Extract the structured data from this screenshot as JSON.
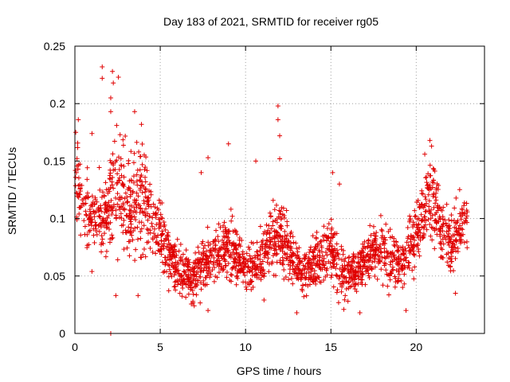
{
  "chart_data": {
    "type": "scatter",
    "title": "Day 183 of 2021, SRMTID for receiver rg05",
    "xlabel": "GPS time / hours",
    "ylabel": "SRMTID / TECUs",
    "xlim": [
      0,
      24
    ],
    "ylim": [
      0,
      0.25
    ],
    "x_ticks": [
      0,
      5,
      10,
      15,
      20
    ],
    "x_tick_labels": [
      "0",
      "5",
      "10",
      "15",
      "20"
    ],
    "y_ticks": [
      0,
      0.05,
      0.1,
      0.15,
      0.2,
      0.25
    ],
    "y_tick_labels": [
      "0",
      "0.05",
      "0.1",
      "0.15",
      "0.2",
      "0.25"
    ],
    "grid": true,
    "marker": "+",
    "color": "#e00000",
    "series": [
      {
        "name": "SRMTID",
        "trend_x": [
          0,
          0.5,
          1,
          1.5,
          2,
          2.5,
          3,
          3.5,
          4,
          4.5,
          5,
          5.5,
          6,
          6.5,
          7,
          7.5,
          8,
          8.5,
          9,
          9.5,
          10,
          10.5,
          11,
          11.5,
          12,
          12.5,
          13,
          13.5,
          14,
          14.5,
          15,
          15.5,
          16,
          16.5,
          17,
          17.5,
          18,
          18.5,
          19,
          19.5,
          20,
          20.5,
          21,
          21.5,
          22,
          22.5,
          23
        ],
        "trend_y": [
          0.14,
          0.11,
          0.1,
          0.1,
          0.11,
          0.13,
          0.11,
          0.11,
          0.12,
          0.1,
          0.085,
          0.07,
          0.055,
          0.05,
          0.048,
          0.055,
          0.065,
          0.07,
          0.075,
          0.07,
          0.055,
          0.06,
          0.065,
          0.08,
          0.085,
          0.075,
          0.06,
          0.055,
          0.06,
          0.065,
          0.075,
          0.06,
          0.05,
          0.055,
          0.065,
          0.07,
          0.07,
          0.065,
          0.06,
          0.07,
          0.085,
          0.11,
          0.12,
          0.085,
          0.08,
          0.09,
          0.1
        ],
        "spread": [
          0.04,
          0.04,
          0.04,
          0.04,
          0.05,
          0.07,
          0.06,
          0.06,
          0.06,
          0.04,
          0.035,
          0.03,
          0.025,
          0.025,
          0.025,
          0.03,
          0.03,
          0.03,
          0.035,
          0.03,
          0.025,
          0.03,
          0.03,
          0.035,
          0.04,
          0.03,
          0.025,
          0.025,
          0.03,
          0.03,
          0.035,
          0.03,
          0.025,
          0.025,
          0.03,
          0.03,
          0.03,
          0.03,
          0.025,
          0.03,
          0.035,
          0.04,
          0.045,
          0.035,
          0.03,
          0.035,
          0.03
        ],
        "n_points": 2200
      }
    ],
    "highlights": [
      {
        "x": 1.6,
        "y": 0.232
      },
      {
        "x": 1.6,
        "y": 0.222
      },
      {
        "x": 2.1,
        "y": 0.205
      },
      {
        "x": 2.2,
        "y": 0.228
      },
      {
        "x": 2.25,
        "y": 0.218
      },
      {
        "x": 2.55,
        "y": 0.223
      },
      {
        "x": 2.1,
        "y": 0.193
      },
      {
        "x": 1.0,
        "y": 0.174
      },
      {
        "x": 0.2,
        "y": 0.186
      },
      {
        "x": 0.05,
        "y": 0.175
      },
      {
        "x": 3.9,
        "y": 0.182
      },
      {
        "x": 3.5,
        "y": 0.193
      },
      {
        "x": 11.9,
        "y": 0.198
      },
      {
        "x": 11.9,
        "y": 0.186
      },
      {
        "x": 12.0,
        "y": 0.172
      },
      {
        "x": 12.0,
        "y": 0.152
      },
      {
        "x": 9.0,
        "y": 0.165
      },
      {
        "x": 7.8,
        "y": 0.153
      },
      {
        "x": 20.8,
        "y": 0.168
      },
      {
        "x": 20.5,
        "y": 0.156
      },
      {
        "x": 20.9,
        "y": 0.163
      },
      {
        "x": 15.1,
        "y": 0.14
      },
      {
        "x": 15.5,
        "y": 0.13
      },
      {
        "x": 7.4,
        "y": 0.14
      },
      {
        "x": 10.6,
        "y": 0.15
      },
      {
        "x": 13.0,
        "y": 0.018
      },
      {
        "x": 16.7,
        "y": 0.018
      },
      {
        "x": 19.4,
        "y": 0.02
      },
      {
        "x": 7.8,
        "y": 0.02
      },
      {
        "x": 2.4,
        "y": 0.033
      },
      {
        "x": 3.7,
        "y": 0.033
      },
      {
        "x": 22.3,
        "y": 0.035
      },
      {
        "x": 2.1,
        "y": 0.0
      }
    ]
  }
}
